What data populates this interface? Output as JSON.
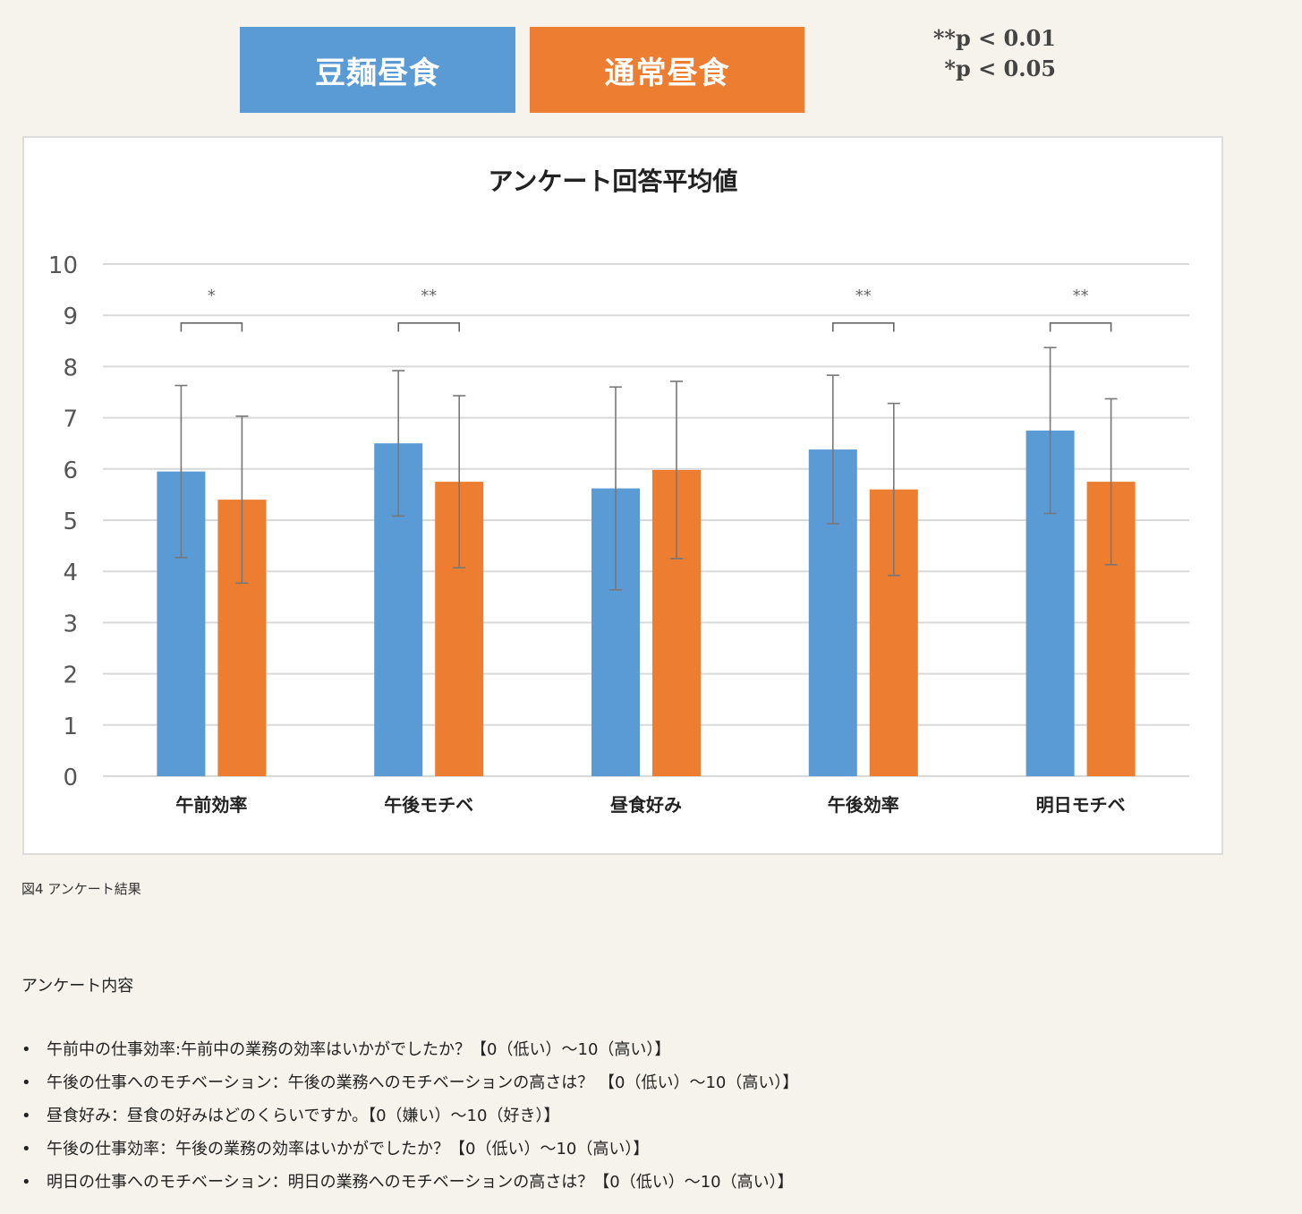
{
  "legend": {
    "series1_label": "豆麺昼食",
    "series2_label": "通常昼食",
    "series1_color": "#5b9bd5",
    "series2_color": "#ed7d31"
  },
  "significance_note": {
    "line1": "**p < 0.01",
    "line2": "*p < 0.05"
  },
  "chart_data": {
    "type": "bar",
    "title": "アンケート回答平均値",
    "xlabel": "",
    "ylabel": "",
    "ylim": [
      0,
      10
    ],
    "yticks": [
      0,
      1,
      2,
      3,
      4,
      5,
      6,
      7,
      8,
      9,
      10
    ],
    "grid": true,
    "categories": [
      "午前効率",
      "午後モチベ",
      "昼食好み",
      "午後効率",
      "明日モチベ"
    ],
    "series": [
      {
        "name": "豆麺昼食",
        "color": "#5b9bd5",
        "values": [
          5.95,
          6.5,
          5.62,
          6.38,
          6.75
        ],
        "error": [
          1.68,
          1.42,
          1.98,
          1.45,
          1.62
        ]
      },
      {
        "name": "通常昼食",
        "color": "#ed7d31",
        "values": [
          5.4,
          5.75,
          5.98,
          5.6,
          5.75
        ],
        "error": [
          1.63,
          1.68,
          1.73,
          1.68,
          1.62
        ]
      }
    ],
    "significance": [
      "*",
      "**",
      "",
      "**",
      "**"
    ]
  },
  "caption": "図4 アンケート結果",
  "survey": {
    "heading": "アンケート内容",
    "items": [
      "午前中の仕事効率:午前中の業務の効率はいかがでしたか？【0（低い）～10（高い）】",
      "午後の仕事へのモチベーション：午後の業務へのモチベーションの高さは？ 【0（低い）～10（高い）】",
      "昼食好み：昼食の好みはどのくらいですか。【0（嫌い）～10（好き）】",
      "午後の仕事効率：午後の業務の効率はいかがでしたか？【0（低い）～10（高い）】",
      "明日の仕事へのモチベーション：明日の業務へのモチベーションの高さは？【0（低い）～10（高い）】"
    ]
  }
}
